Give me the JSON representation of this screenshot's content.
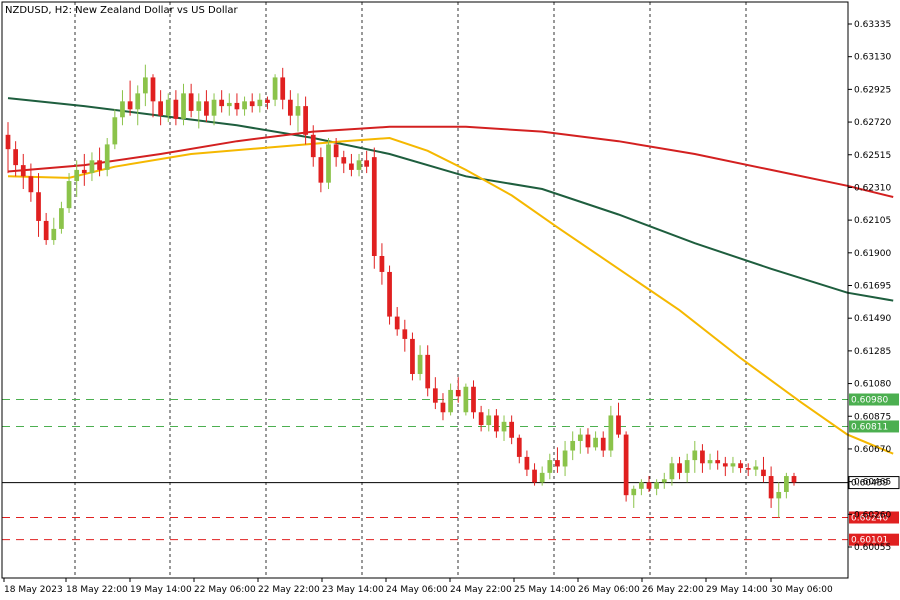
{
  "chart_data": {
    "type": "candlestick",
    "title": "NZDUSD, H2:  New Zealand Dollar vs US Dollar",
    "symbol": "NZDUSD",
    "timeframe": "H2",
    "ylim": [
      0.60055,
      0.63335
    ],
    "y_ticks": [
      "0.63335",
      "0.63130",
      "0.62925",
      "0.62720",
      "0.62515",
      "0.62310",
      "0.62105",
      "0.61900",
      "0.61695",
      "0.61490",
      "0.61285",
      "0.61080",
      "0.60875",
      "0.60670",
      "0.60465",
      "0.60260",
      "0.60055"
    ],
    "x_labels": [
      "18 May 2023",
      "18 May 22:00",
      "19 May 14:00",
      "22 May 06:00",
      "22 May 22:00",
      "23 May 14:00",
      "24 May 06:00",
      "24 May 22:00",
      "25 May 14:00",
      "26 May 06:00",
      "26 May 22:00",
      "29 May 14:00",
      "30 May 06:00"
    ],
    "colors": {
      "bull": "#8bc34a",
      "bear": "#e02020",
      "ma_fast": "#f5b800",
      "ma_slow_red": "#d32020",
      "ma_slow_green": "#1e5e3e",
      "resistance": "#4caf50",
      "support": "#e02020",
      "current": "#000000",
      "grid": "#333333"
    },
    "candles": [
      {
        "o": 0.6264,
        "h": 0.6272,
        "l": 0.624,
        "c": 0.6255
      },
      {
        "o": 0.6255,
        "h": 0.626,
        "l": 0.6238,
        "c": 0.6245
      },
      {
        "o": 0.6245,
        "h": 0.6252,
        "l": 0.623,
        "c": 0.6238
      },
      {
        "o": 0.6238,
        "h": 0.6246,
        "l": 0.6222,
        "c": 0.6228
      },
      {
        "o": 0.6228,
        "h": 0.624,
        "l": 0.62,
        "c": 0.621
      },
      {
        "o": 0.621,
        "h": 0.6215,
        "l": 0.6195,
        "c": 0.6198
      },
      {
        "o": 0.6198,
        "h": 0.6212,
        "l": 0.6195,
        "c": 0.6205
      },
      {
        "o": 0.6205,
        "h": 0.6222,
        "l": 0.6202,
        "c": 0.6218
      },
      {
        "o": 0.6218,
        "h": 0.624,
        "l": 0.6215,
        "c": 0.6235
      },
      {
        "o": 0.6235,
        "h": 0.6248,
        "l": 0.6225,
        "c": 0.6242
      },
      {
        "o": 0.6242,
        "h": 0.6252,
        "l": 0.6232,
        "c": 0.624
      },
      {
        "o": 0.624,
        "h": 0.6253,
        "l": 0.6235,
        "c": 0.6248
      },
      {
        "o": 0.6248,
        "h": 0.6256,
        "l": 0.6238,
        "c": 0.6242
      },
      {
        "o": 0.6242,
        "h": 0.6262,
        "l": 0.6238,
        "c": 0.6258
      },
      {
        "o": 0.6258,
        "h": 0.628,
        "l": 0.6255,
        "c": 0.6275
      },
      {
        "o": 0.6275,
        "h": 0.6292,
        "l": 0.627,
        "c": 0.6285
      },
      {
        "o": 0.6285,
        "h": 0.6298,
        "l": 0.6276,
        "c": 0.628
      },
      {
        "o": 0.628,
        "h": 0.6295,
        "l": 0.627,
        "c": 0.629
      },
      {
        "o": 0.629,
        "h": 0.6308,
        "l": 0.6282,
        "c": 0.63
      },
      {
        "o": 0.63,
        "h": 0.6302,
        "l": 0.6275,
        "c": 0.6285
      },
      {
        "o": 0.6285,
        "h": 0.6292,
        "l": 0.627,
        "c": 0.6276
      },
      {
        "o": 0.6276,
        "h": 0.629,
        "l": 0.6272,
        "c": 0.6286
      },
      {
        "o": 0.6286,
        "h": 0.6292,
        "l": 0.627,
        "c": 0.6274
      },
      {
        "o": 0.6274,
        "h": 0.6296,
        "l": 0.627,
        "c": 0.629
      },
      {
        "o": 0.629,
        "h": 0.6296,
        "l": 0.6275,
        "c": 0.6279
      },
      {
        "o": 0.6279,
        "h": 0.629,
        "l": 0.6268,
        "c": 0.6285
      },
      {
        "o": 0.6285,
        "h": 0.6292,
        "l": 0.6272,
        "c": 0.6276
      },
      {
        "o": 0.6276,
        "h": 0.629,
        "l": 0.627,
        "c": 0.6286
      },
      {
        "o": 0.6286,
        "h": 0.6292,
        "l": 0.6278,
        "c": 0.6282
      },
      {
        "o": 0.6282,
        "h": 0.629,
        "l": 0.6276,
        "c": 0.6284
      },
      {
        "o": 0.6284,
        "h": 0.629,
        "l": 0.6276,
        "c": 0.628
      },
      {
        "o": 0.628,
        "h": 0.6288,
        "l": 0.6276,
        "c": 0.6285
      },
      {
        "o": 0.6285,
        "h": 0.629,
        "l": 0.6278,
        "c": 0.6282
      },
      {
        "o": 0.6282,
        "h": 0.629,
        "l": 0.6278,
        "c": 0.6286
      },
      {
        "o": 0.6286,
        "h": 0.6288,
        "l": 0.628,
        "c": 0.6284
      },
      {
        "o": 0.6286,
        "h": 0.6302,
        "l": 0.6282,
        "c": 0.63
      },
      {
        "o": 0.63,
        "h": 0.6306,
        "l": 0.628,
        "c": 0.6286
      },
      {
        "o": 0.6286,
        "h": 0.6292,
        "l": 0.627,
        "c": 0.6276
      },
      {
        "o": 0.6276,
        "h": 0.629,
        "l": 0.6266,
        "c": 0.6282
      },
      {
        "o": 0.6282,
        "h": 0.6288,
        "l": 0.6258,
        "c": 0.6264
      },
      {
        "o": 0.6264,
        "h": 0.627,
        "l": 0.6244,
        "c": 0.625
      },
      {
        "o": 0.625,
        "h": 0.6256,
        "l": 0.6228,
        "c": 0.6234
      },
      {
        "o": 0.6234,
        "h": 0.6262,
        "l": 0.623,
        "c": 0.6258
      },
      {
        "o": 0.6258,
        "h": 0.6262,
        "l": 0.6244,
        "c": 0.625
      },
      {
        "o": 0.625,
        "h": 0.6254,
        "l": 0.624,
        "c": 0.6246
      },
      {
        "o": 0.6246,
        "h": 0.6252,
        "l": 0.6238,
        "c": 0.6242
      },
      {
        "o": 0.6242,
        "h": 0.6252,
        "l": 0.6238,
        "c": 0.6248
      },
      {
        "o": 0.6248,
        "h": 0.6254,
        "l": 0.624,
        "c": 0.6244
      },
      {
        "o": 0.625,
        "h": 0.6256,
        "l": 0.618,
        "c": 0.6188
      },
      {
        "o": 0.6188,
        "h": 0.6196,
        "l": 0.617,
        "c": 0.6178
      },
      {
        "o": 0.6178,
        "h": 0.6182,
        "l": 0.6145,
        "c": 0.615
      },
      {
        "o": 0.615,
        "h": 0.6156,
        "l": 0.6138,
        "c": 0.6142
      },
      {
        "o": 0.6142,
        "h": 0.6148,
        "l": 0.6128,
        "c": 0.6136
      },
      {
        "o": 0.6136,
        "h": 0.614,
        "l": 0.611,
        "c": 0.6114
      },
      {
        "o": 0.6114,
        "h": 0.6132,
        "l": 0.611,
        "c": 0.6126
      },
      {
        "o": 0.6126,
        "h": 0.6132,
        "l": 0.61,
        "c": 0.6105
      },
      {
        "o": 0.6105,
        "h": 0.6112,
        "l": 0.6092,
        "c": 0.6096
      },
      {
        "o": 0.6096,
        "h": 0.6102,
        "l": 0.6085,
        "c": 0.609
      },
      {
        "o": 0.609,
        "h": 0.6108,
        "l": 0.6088,
        "c": 0.6104
      },
      {
        "o": 0.6104,
        "h": 0.6112,
        "l": 0.6096,
        "c": 0.61
      },
      {
        "o": 0.609,
        "h": 0.6108,
        "l": 0.6088,
        "c": 0.6106
      },
      {
        "o": 0.6106,
        "h": 0.611,
        "l": 0.6086,
        "c": 0.609
      },
      {
        "o": 0.609,
        "h": 0.6094,
        "l": 0.6078,
        "c": 0.6082
      },
      {
        "o": 0.6082,
        "h": 0.6092,
        "l": 0.6078,
        "c": 0.6088
      },
      {
        "o": 0.6088,
        "h": 0.6092,
        "l": 0.6074,
        "c": 0.6078
      },
      {
        "o": 0.6078,
        "h": 0.6088,
        "l": 0.6072,
        "c": 0.6084
      },
      {
        "o": 0.6084,
        "h": 0.6088,
        "l": 0.607,
        "c": 0.6074
      },
      {
        "o": 0.6074,
        "h": 0.6076,
        "l": 0.6058,
        "c": 0.6062
      },
      {
        "o": 0.6062,
        "h": 0.6066,
        "l": 0.605,
        "c": 0.6054
      },
      {
        "o": 0.6054,
        "h": 0.6058,
        "l": 0.6044,
        "c": 0.6046
      },
      {
        "o": 0.6046,
        "h": 0.6056,
        "l": 0.6044,
        "c": 0.6052
      },
      {
        "o": 0.6052,
        "h": 0.6064,
        "l": 0.6048,
        "c": 0.606
      },
      {
        "o": 0.606,
        "h": 0.6068,
        "l": 0.6052,
        "c": 0.6056
      },
      {
        "o": 0.6056,
        "h": 0.6072,
        "l": 0.605,
        "c": 0.6066
      },
      {
        "o": 0.6066,
        "h": 0.6078,
        "l": 0.606,
        "c": 0.6072
      },
      {
        "o": 0.6072,
        "h": 0.608,
        "l": 0.6064,
        "c": 0.6076
      },
      {
        "o": 0.6076,
        "h": 0.608,
        "l": 0.6064,
        "c": 0.6068
      },
      {
        "o": 0.6068,
        "h": 0.6078,
        "l": 0.6066,
        "c": 0.6074
      },
      {
        "o": 0.6074,
        "h": 0.6078,
        "l": 0.6062,
        "c": 0.6066
      },
      {
        "o": 0.6066,
        "h": 0.6094,
        "l": 0.6062,
        "c": 0.6088
      },
      {
        "o": 0.6088,
        "h": 0.6096,
        "l": 0.6074,
        "c": 0.6076
      },
      {
        "o": 0.6076,
        "h": 0.6078,
        "l": 0.6034,
        "c": 0.6038
      },
      {
        "o": 0.6038,
        "h": 0.6044,
        "l": 0.603,
        "c": 0.6042
      },
      {
        "o": 0.6042,
        "h": 0.6048,
        "l": 0.6038,
        "c": 0.6046
      },
      {
        "o": 0.6046,
        "h": 0.605,
        "l": 0.604,
        "c": 0.6042
      },
      {
        "o": 0.6042,
        "h": 0.6048,
        "l": 0.6038,
        "c": 0.6046
      },
      {
        "o": 0.6046,
        "h": 0.6052,
        "l": 0.6042,
        "c": 0.6048
      },
      {
        "o": 0.6048,
        "h": 0.6062,
        "l": 0.6044,
        "c": 0.6058
      },
      {
        "o": 0.6058,
        "h": 0.6062,
        "l": 0.6048,
        "c": 0.6052
      },
      {
        "o": 0.6052,
        "h": 0.6064,
        "l": 0.6046,
        "c": 0.606
      },
      {
        "o": 0.606,
        "h": 0.6072,
        "l": 0.6052,
        "c": 0.6066
      },
      {
        "o": 0.6066,
        "h": 0.607,
        "l": 0.6052,
        "c": 0.6058
      },
      {
        "o": 0.6058,
        "h": 0.6064,
        "l": 0.6054,
        "c": 0.606
      },
      {
        "o": 0.606,
        "h": 0.6066,
        "l": 0.6054,
        "c": 0.6058
      },
      {
        "o": 0.6058,
        "h": 0.6062,
        "l": 0.605,
        "c": 0.6056
      },
      {
        "o": 0.6056,
        "h": 0.6062,
        "l": 0.6052,
        "c": 0.6058
      },
      {
        "o": 0.6058,
        "h": 0.606,
        "l": 0.6052,
        "c": 0.6055
      },
      {
        "o": 0.6055,
        "h": 0.6058,
        "l": 0.605,
        "c": 0.6054
      },
      {
        "o": 0.6054,
        "h": 0.606,
        "l": 0.605,
        "c": 0.6056
      },
      {
        "o": 0.6054,
        "h": 0.6062,
        "l": 0.6046,
        "c": 0.605
      },
      {
        "o": 0.605,
        "h": 0.6056,
        "l": 0.603,
        "c": 0.6036
      },
      {
        "o": 0.6036,
        "h": 0.6046,
        "l": 0.6024,
        "c": 0.604
      },
      {
        "o": 0.604,
        "h": 0.6052,
        "l": 0.6036,
        "c": 0.605
      },
      {
        "o": 0.605,
        "h": 0.6052,
        "l": 0.6044,
        "c": 0.6046
      }
    ],
    "ma_fast": [
      [
        0,
        0.6238
      ],
      [
        8,
        0.6237
      ],
      [
        14,
        0.6244
      ],
      [
        24,
        0.6252
      ],
      [
        34,
        0.6256
      ],
      [
        44,
        0.626
      ],
      [
        50,
        0.6262
      ],
      [
        55,
        0.6254
      ],
      [
        60,
        0.6242
      ],
      [
        66,
        0.6226
      ],
      [
        72,
        0.6206
      ],
      [
        80,
        0.618
      ],
      [
        88,
        0.6154
      ],
      [
        96,
        0.6124
      ],
      [
        104,
        0.6096
      ],
      [
        110,
        0.6076
      ],
      [
        116,
        0.6064
      ]
    ],
    "ma_slow_red": [
      [
        0,
        0.6241
      ],
      [
        10,
        0.6245
      ],
      [
        20,
        0.6252
      ],
      [
        30,
        0.626
      ],
      [
        40,
        0.6266
      ],
      [
        50,
        0.6269
      ],
      [
        60,
        0.6269
      ],
      [
        70,
        0.6266
      ],
      [
        80,
        0.626
      ],
      [
        90,
        0.6252
      ],
      [
        100,
        0.6242
      ],
      [
        110,
        0.6232
      ],
      [
        116,
        0.6225
      ]
    ],
    "ma_slow_green": [
      [
        0,
        0.6287
      ],
      [
        10,
        0.6282
      ],
      [
        20,
        0.6276
      ],
      [
        30,
        0.627
      ],
      [
        40,
        0.6262
      ],
      [
        50,
        0.6252
      ],
      [
        60,
        0.6238
      ],
      [
        70,
        0.623
      ],
      [
        80,
        0.6214
      ],
      [
        90,
        0.6196
      ],
      [
        100,
        0.618
      ],
      [
        110,
        0.6165
      ],
      [
        116,
        0.616
      ]
    ],
    "levels": [
      {
        "value": 0.6098,
        "label": "0.60980",
        "kind": "resistance"
      },
      {
        "value": 0.60811,
        "label": "0.60811",
        "kind": "resistance"
      },
      {
        "value": 0.6024,
        "label": "0.60240",
        "kind": "support"
      },
      {
        "value": 0.60101,
        "label": "0.60101",
        "kind": "support"
      }
    ],
    "current_price": {
      "value": 0.60459,
      "label": "0.60459"
    }
  }
}
